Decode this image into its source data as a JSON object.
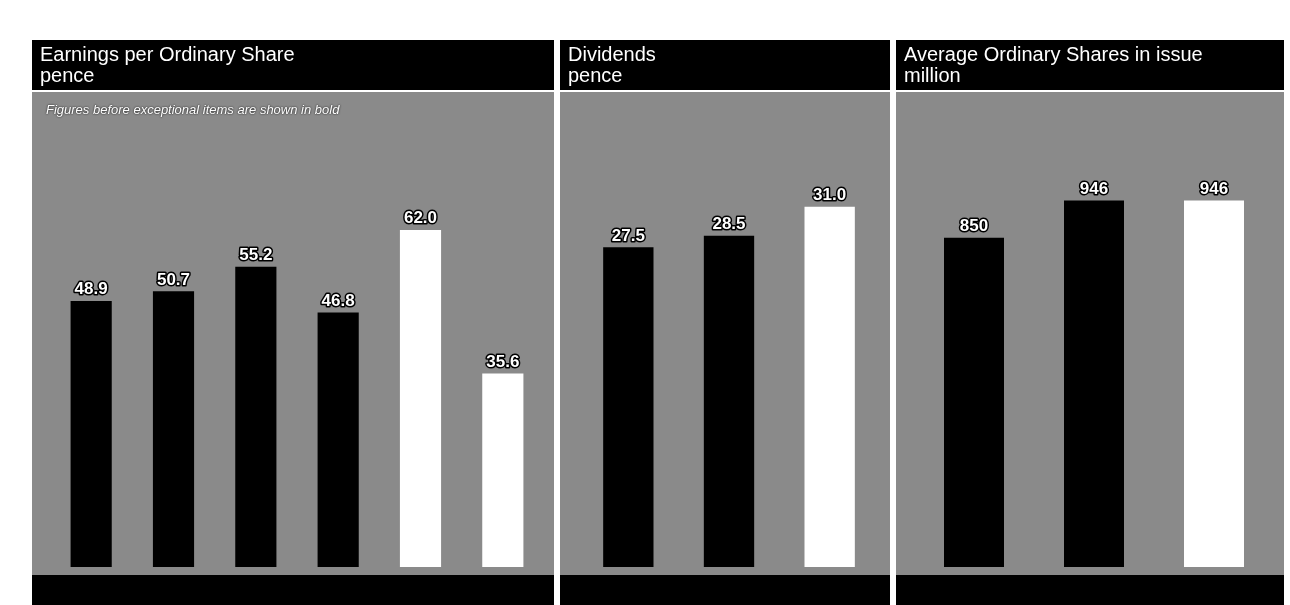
{
  "chart_data": [
    {
      "type": "bar",
      "title": "Earnings per Ordinary Share",
      "subtitle": "pence",
      "annotations": [
        "Figures before exceptional items are shown in bold"
      ],
      "categories": [
        null,
        null,
        null,
        null,
        null,
        null
      ],
      "values": [
        48.9,
        50.7,
        55.2,
        46.8,
        62.0,
        35.6
      ],
      "value_labels": [
        "48.9",
        "50.7",
        "55.2",
        "46.8",
        "62.0",
        "35.6"
      ],
      "colors": [
        "#000000",
        "#000000",
        "#000000",
        "#000000",
        "#ffffff",
        "#ffffff"
      ]
    },
    {
      "type": "bar",
      "title": "Dividends",
      "subtitle": "pence",
      "categories": [
        null,
        null,
        null
      ],
      "values": [
        27.5,
        28.5,
        31.0
      ],
      "value_labels": [
        "27.5",
        "28.5",
        "31.0"
      ],
      "colors": [
        "#000000",
        "#000000",
        "#ffffff"
      ]
    },
    {
      "type": "bar",
      "title": "Average Ordinary Shares in issue",
      "subtitle": "million",
      "categories": [
        null,
        null,
        null
      ],
      "values": [
        850,
        946,
        946
      ],
      "colors": [
        "#000000",
        "#000000",
        "#ffffff"
      ],
      "data_labels": true
    }
  ]
}
